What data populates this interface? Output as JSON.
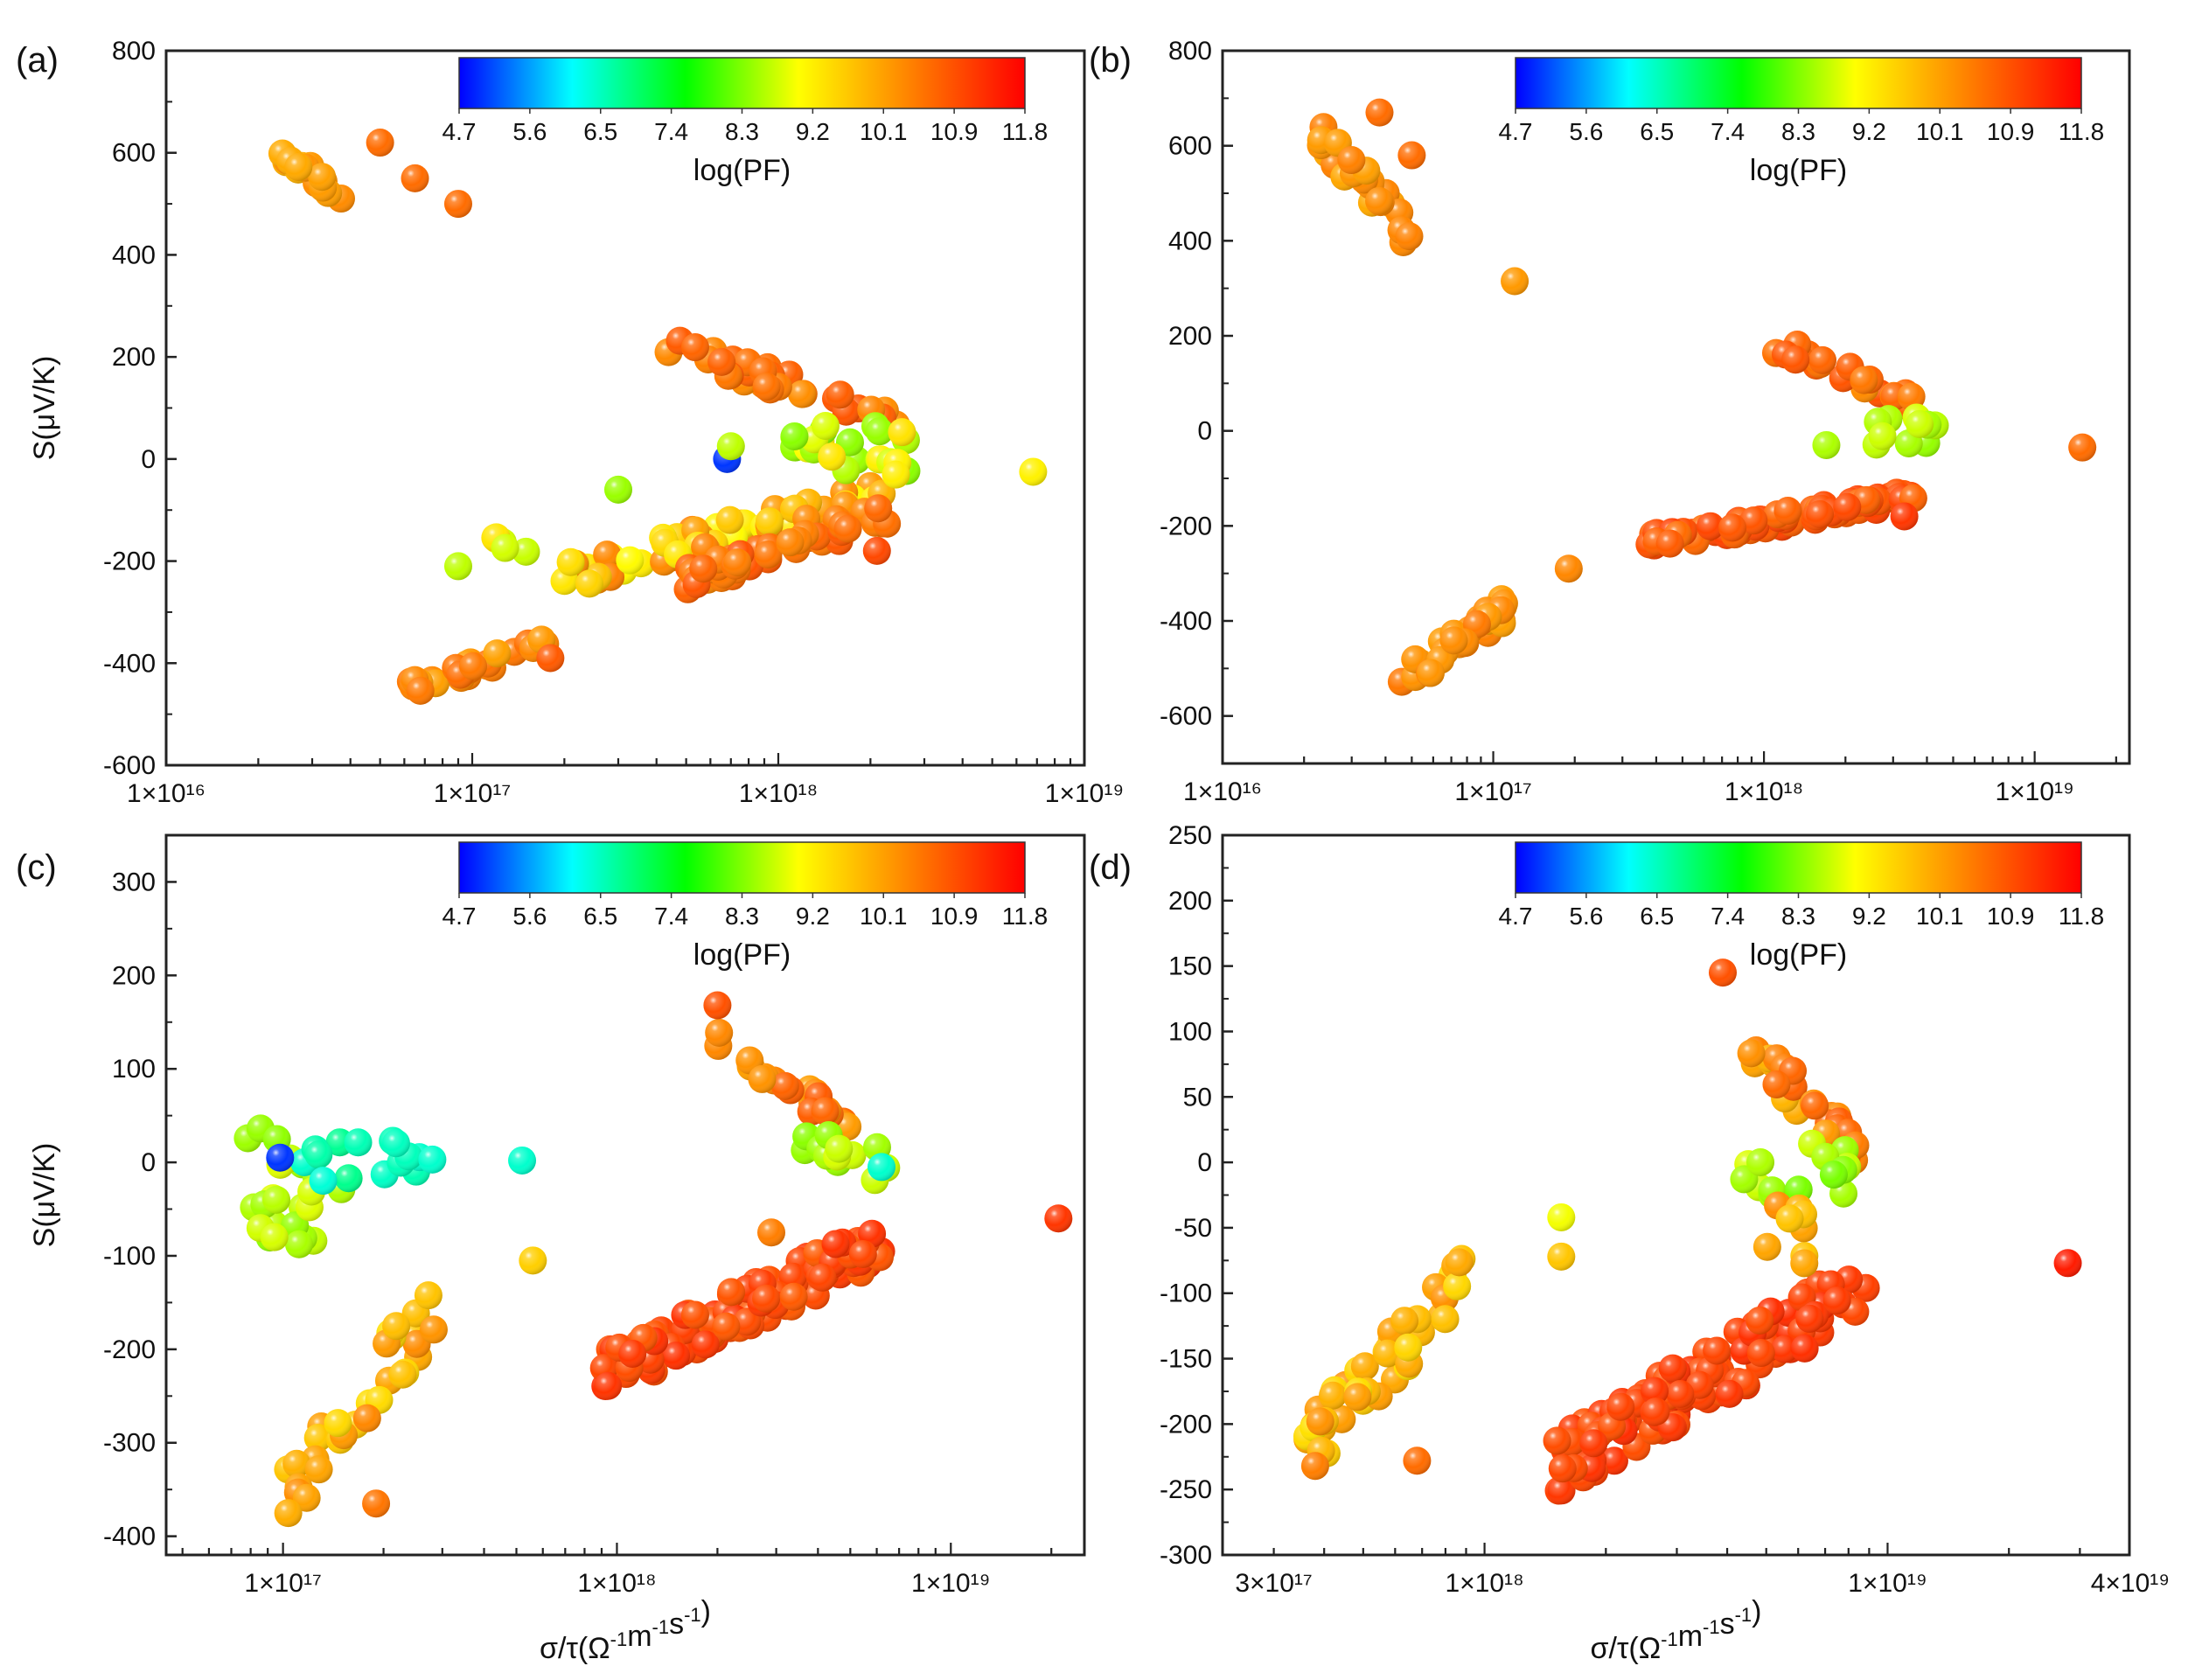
{
  "figure": {
    "x_title_main": "σ/τ(Ω",
    "x_title_sup1": "-1",
    "x_title_mid": "m",
    "x_title_sup2": "-1",
    "x_title_mid2": "s",
    "x_title_sup3": "-1",
    "x_title_end": ")",
    "y_title": "S(μV/K)"
  },
  "colorbar": {
    "title": "log(PF)",
    "ticks": [
      "4.7",
      "5.6",
      "6.5",
      "7.4",
      "8.3",
      "9.2",
      "10.1",
      "10.9",
      "11.8"
    ],
    "range": [
      4.7,
      11.8
    ],
    "stops": [
      "#0000ff",
      "#00ffff",
      "#00ff00",
      "#ffff00",
      "#ff8000",
      "#ff0000"
    ]
  },
  "chart_data": [
    {
      "id": "a",
      "label": "(a)",
      "type": "scatter",
      "xscale": "log",
      "xlim_exp": [
        16,
        19
      ],
      "ylim": [
        -600,
        800
      ],
      "yticks": [
        800,
        600,
        400,
        200,
        0,
        -200,
        -400,
        -600
      ],
      "xticks": [
        {
          "exp": 16,
          "label": "1×10¹⁶"
        },
        {
          "exp": 17,
          "label": "1×10¹⁷"
        },
        {
          "exp": 18,
          "label": "1×10¹⁸"
        },
        {
          "exp": 19,
          "label": "1×10¹⁹"
        }
      ],
      "show_ylabel": true,
      "show_xlabel": false,
      "clusters": [
        {
          "x": [
            2.1e+16,
            3.8e+16
          ],
          "y": [
            500,
            640
          ],
          "pf": [
            9.8,
            10.3
          ],
          "n": 18,
          "trend": "down"
        },
        {
          "x": [
            6e+16,
            1.8e+17
          ],
          "y": [
            -470,
            -340
          ],
          "pf": [
            10.0,
            10.6
          ],
          "n": 30,
          "trend": "up"
        },
        {
          "x": [
            2e+17,
            2.2e+18
          ],
          "y": [
            -260,
            -40
          ],
          "pf": [
            9.0,
            10.4
          ],
          "n": 60,
          "trend": "up"
        },
        {
          "x": [
            5e+17,
            2.4e+18
          ],
          "y": [
            -260,
            -80
          ],
          "pf": [
            10.3,
            10.9
          ],
          "n": 45,
          "trend": "up"
        },
        {
          "x": [
            4.3e+17,
            2.5e+18
          ],
          "y": [
            60,
            240
          ],
          "pf": [
            10.2,
            10.9
          ],
          "n": 30,
          "trend": "down"
        },
        {
          "x": [
            1.1e+18,
            2.8e+18
          ],
          "y": [
            -40,
            70
          ],
          "pf": [
            8.3,
            9.3
          ],
          "n": 24,
          "trend": "flat"
        },
        {
          "x": [
            1e+17,
            1.6e+17
          ],
          "y": [
            -220,
            -110
          ],
          "pf": [
            8.6,
            9.4
          ],
          "n": 6,
          "trend": "down"
        }
      ],
      "points": [
        {
          "x": 5e+16,
          "y": 620,
          "pf": 10.6
        },
        {
          "x": 6.5e+16,
          "y": 550,
          "pf": 10.6
        },
        {
          "x": 9e+16,
          "y": 500,
          "pf": 10.6
        },
        {
          "x": 6.8e+17,
          "y": 0,
          "pf": 5.0
        },
        {
          "x": 7e+17,
          "y": 25,
          "pf": 8.6
        },
        {
          "x": 6.8e+18,
          "y": -25,
          "pf": 9.1
        },
        {
          "x": 2.1e+18,
          "y": -180,
          "pf": 11.0
        },
        {
          "x": 9e+16,
          "y": -210,
          "pf": 8.6
        },
        {
          "x": 3e+17,
          "y": -60,
          "pf": 8.4
        },
        {
          "x": 1.8e+17,
          "y": -390,
          "pf": 10.8
        }
      ]
    },
    {
      "id": "b",
      "label": "(b)",
      "type": "scatter",
      "xscale": "log",
      "xlim_exp": [
        16,
        19.35
      ],
      "ylim": [
        -700,
        800
      ],
      "yticks": [
        800,
        600,
        400,
        200,
        0,
        -200,
        -400,
        -600
      ],
      "xticks": [
        {
          "exp": 16,
          "label": "1×10¹⁶"
        },
        {
          "exp": 17,
          "label": "1×10¹⁷"
        },
        {
          "exp": 18,
          "label": "1×10¹⁸"
        },
        {
          "exp": 19,
          "label": "1×10¹⁹"
        }
      ],
      "show_ylabel": false,
      "show_xlabel": false,
      "clusters": [
        {
          "x": [
            2.1e+16,
            5.5e+16
          ],
          "y": [
            350,
            670
          ],
          "pf": [
            9.9,
            10.4
          ],
          "n": 26,
          "trend": "down"
        },
        {
          "x": [
            4.5e+16,
            1.2e+17
          ],
          "y": [
            -560,
            -330
          ],
          "pf": [
            10.0,
            10.5
          ],
          "n": 30,
          "trend": "up"
        },
        {
          "x": [
            3.7e+17,
            3.8e+18
          ],
          "y": [
            -250,
            -120
          ],
          "pf": [
            10.6,
            11.1
          ],
          "n": 80,
          "trend": "up"
        },
        {
          "x": [
            1.1e+18,
            3.8e+18
          ],
          "y": [
            40,
            200
          ],
          "pf": [
            10.2,
            10.9
          ],
          "n": 24,
          "trend": "down"
        },
        {
          "x": [
            2.6e+18,
            4.3e+18
          ],
          "y": [
            -30,
            30
          ],
          "pf": [
            8.2,
            8.9
          ],
          "n": 10,
          "trend": "flat"
        }
      ],
      "points": [
        {
          "x": 3.8e+16,
          "y": 670,
          "pf": 10.6
        },
        {
          "x": 5e+16,
          "y": 580,
          "pf": 10.6
        },
        {
          "x": 1.2e+17,
          "y": 315,
          "pf": 10.1
        },
        {
          "x": 1.9e+17,
          "y": -290,
          "pf": 10.3
        },
        {
          "x": 1.7e+18,
          "y": -30,
          "pf": 8.5
        },
        {
          "x": 1.5e+19,
          "y": -35,
          "pf": 10.6
        },
        {
          "x": 3.3e+18,
          "y": -180,
          "pf": 11.2
        }
      ]
    },
    {
      "id": "c",
      "label": "(c)",
      "type": "scatter",
      "xscale": "log",
      "xlim_exp": [
        16.65,
        19.4
      ],
      "ylim": [
        -420,
        350
      ],
      "yticks": [
        300,
        200,
        100,
        0,
        -100,
        -200,
        -300,
        -400
      ],
      "xticks": [
        {
          "exp": 17,
          "label": "1×10¹⁷"
        },
        {
          "exp": 18,
          "label": "1×10¹⁸"
        },
        {
          "exp": 19,
          "label": "1×10¹⁹"
        }
      ],
      "show_ylabel": true,
      "show_xlabel": true,
      "clusters": [
        {
          "x": [
            7.8e+16,
            1.5e+17
          ],
          "y": [
            -90,
            45
          ],
          "pf": [
            8.3,
            8.8
          ],
          "n": 24,
          "trend": "flat"
        },
        {
          "x": [
            1.1e+17,
            2.6e+17
          ],
          "y": [
            -20,
            25
          ],
          "pf": [
            6.3,
            6.8
          ],
          "n": 14,
          "trend": "flat"
        },
        {
          "x": [
            1e+17,
            2.9e+17
          ],
          "y": [
            -390,
            -120
          ],
          "pf": [
            9.3,
            10.3
          ],
          "n": 30,
          "trend": "up"
        },
        {
          "x": [
            9e+17,
            6.5e+18
          ],
          "y": [
            -250,
            -60
          ],
          "pf": [
            10.8,
            11.3
          ],
          "n": 110,
          "trend": "up"
        },
        {
          "x": [
            2e+18,
            5e+18
          ],
          "y": [
            30,
            140
          ],
          "pf": [
            10.0,
            10.8
          ],
          "n": 22,
          "trend": "down"
        },
        {
          "x": [
            3.5e+18,
            6.5e+18
          ],
          "y": [
            -20,
            30
          ],
          "pf": [
            8.3,
            8.8
          ],
          "n": 12,
          "trend": "flat"
        }
      ],
      "points": [
        {
          "x": 9.8e+16,
          "y": 5,
          "pf": 5.0
        },
        {
          "x": 2.8e+17,
          "y": 3,
          "pf": 6.4
        },
        {
          "x": 5.2e+17,
          "y": 2,
          "pf": 6.4
        },
        {
          "x": 5.6e+17,
          "y": -105,
          "pf": 9.5
        },
        {
          "x": 2e+18,
          "y": 168,
          "pf": 10.9
        },
        {
          "x": 2.1e+19,
          "y": -60,
          "pf": 11.2
        },
        {
          "x": 6.2e+18,
          "y": -5,
          "pf": 6.4
        },
        {
          "x": 2.9e+18,
          "y": -75,
          "pf": 10.4
        },
        {
          "x": 1.9e+17,
          "y": -365,
          "pf": 10.5
        }
      ]
    },
    {
      "id": "d",
      "label": "(d)",
      "type": "scatter",
      "xscale": "log",
      "xlim_exp": [
        17.35,
        19.6
      ],
      "ylim": [
        -300,
        250
      ],
      "yticks": [
        250,
        200,
        150,
        100,
        50,
        0,
        -50,
        -100,
        -150,
        -200,
        -250,
        -300
      ],
      "xticks": [
        {
          "exp": 17.477,
          "label": "3×10¹⁷"
        },
        {
          "exp": 18,
          "label": "1×10¹⁸"
        },
        {
          "exp": 19,
          "label": "1×10¹⁹"
        },
        {
          "exp": 19.602,
          "label": "4×10¹⁹"
        }
      ],
      "show_ylabel": false,
      "show_xlabel": true,
      "clusters": [
        {
          "x": [
            3.4e+17,
            9e+17
          ],
          "y": [
            -250,
            -65
          ],
          "pf": [
            9.3,
            10.2
          ],
          "n": 45,
          "trend": "up"
        },
        {
          "x": [
            1.5e+18,
            9e+18
          ],
          "y": [
            -255,
            -70
          ],
          "pf": [
            10.9,
            11.3
          ],
          "n": 130,
          "trend": "up"
        },
        {
          "x": [
            4.3e+18,
            8.5e+18
          ],
          "y": [
            -10,
            110
          ],
          "pf": [
            9.7,
            10.8
          ],
          "n": 26,
          "trend": "down"
        },
        {
          "x": [
            4.3e+18,
            8e+18
          ],
          "y": [
            -25,
            15
          ],
          "pf": [
            8.2,
            8.8
          ],
          "n": 14,
          "trend": "flat"
        },
        {
          "x": [
            5e+18,
            6.6e+18
          ],
          "y": [
            -85,
            -30
          ],
          "pf": [
            9.6,
            10.3
          ],
          "n": 8,
          "trend": "flat"
        }
      ],
      "points": [
        {
          "x": 1.55e+18,
          "y": -42,
          "pf": 8.9
        },
        {
          "x": 1.55e+18,
          "y": -72,
          "pf": 9.6
        },
        {
          "x": 3.9e+18,
          "y": 145,
          "pf": 10.9
        },
        {
          "x": 2.8e+19,
          "y": -77,
          "pf": 11.5
        },
        {
          "x": 6.8e+17,
          "y": -228,
          "pf": 10.6
        },
        {
          "x": 3.8e+17,
          "y": -232,
          "pf": 10.4
        }
      ]
    }
  ]
}
